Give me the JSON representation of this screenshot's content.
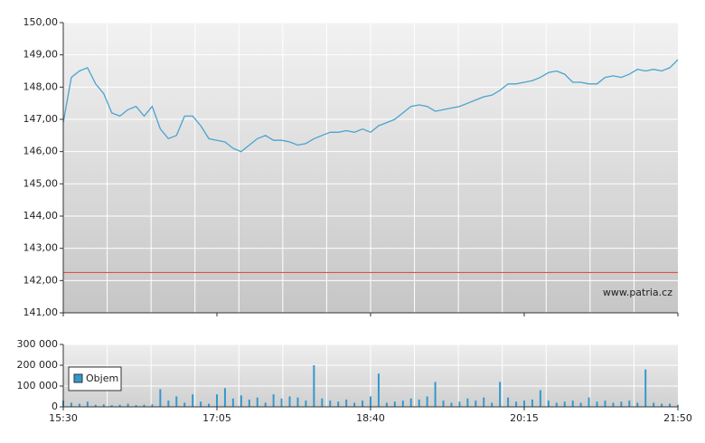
{
  "chart_data": [
    {
      "type": "line",
      "x": [
        "15:30",
        "15:35",
        "15:40",
        "15:45",
        "15:50",
        "15:55",
        "16:00",
        "16:05",
        "16:10",
        "16:15",
        "16:20",
        "16:25",
        "16:30",
        "16:35",
        "16:40",
        "16:45",
        "16:50",
        "16:55",
        "17:00",
        "17:05",
        "17:10",
        "17:15",
        "17:20",
        "17:25",
        "17:30",
        "17:35",
        "17:40",
        "17:45",
        "17:50",
        "17:55",
        "18:00",
        "18:05",
        "18:10",
        "18:15",
        "18:20",
        "18:25",
        "18:30",
        "18:35",
        "18:40",
        "18:45",
        "18:50",
        "18:55",
        "19:00",
        "19:05",
        "19:10",
        "19:15",
        "19:20",
        "19:25",
        "19:30",
        "19:35",
        "19:40",
        "19:45",
        "19:50",
        "19:55",
        "20:00",
        "20:05",
        "20:10",
        "20:15",
        "20:20",
        "20:25",
        "20:30",
        "20:35",
        "20:40",
        "20:45",
        "20:50",
        "20:55",
        "21:00",
        "21:05",
        "21:10",
        "21:15",
        "21:20",
        "21:25",
        "21:30",
        "21:35",
        "21:40",
        "21:45",
        "21:50"
      ],
      "series": [
        {
          "color": "#4aa3d0",
          "values": [
            146.9,
            148.3,
            148.5,
            148.6,
            148.1,
            147.8,
            147.2,
            147.1,
            147.3,
            147.4,
            147.1,
            147.4,
            146.7,
            146.4,
            146.5,
            147.1,
            147.1,
            146.8,
            146.4,
            146.35,
            146.3,
            146.1,
            146.0,
            146.2,
            146.4,
            146.5,
            146.35,
            146.35,
            146.3,
            146.2,
            146.25,
            146.4,
            146.5,
            146.6,
            146.6,
            146.65,
            146.6,
            146.7,
            146.6,
            146.8,
            146.9,
            147.0,
            147.2,
            147.4,
            147.45,
            147.4,
            147.25,
            147.3,
            147.35,
            147.4,
            147.5,
            147.6,
            147.7,
            147.75,
            147.9,
            148.1,
            148.1,
            148.15,
            148.2,
            148.3,
            148.45,
            148.5,
            148.4,
            148.15,
            148.15,
            148.1,
            148.1,
            148.3,
            148.35,
            148.3,
            148.4,
            148.55,
            148.5,
            148.55,
            148.5,
            148.6,
            148.85
          ]
        }
      ],
      "reference_line": {
        "value": 142.25,
        "color": "#d9534f"
      },
      "xlim": [
        "15:30",
        "21:50"
      ],
      "ylim": [
        141,
        150
      ],
      "yticks": [
        {
          "value": 141,
          "label": "141,00"
        },
        {
          "value": 142,
          "label": "142,00"
        },
        {
          "value": 143,
          "label": "143,00"
        },
        {
          "value": 144,
          "label": "144,00"
        },
        {
          "value": 145,
          "label": "145,00"
        },
        {
          "value": 146,
          "label": "146,00"
        },
        {
          "value": 147,
          "label": "147,00"
        },
        {
          "value": 148,
          "label": "148,00"
        },
        {
          "value": 149,
          "label": "149,00"
        },
        {
          "value": 150,
          "label": "150,00"
        }
      ],
      "annotation": "www.patria.cz",
      "grid": true
    },
    {
      "type": "bar",
      "x": [
        "15:30",
        "15:35",
        "15:40",
        "15:45",
        "15:50",
        "15:55",
        "16:00",
        "16:05",
        "16:10",
        "16:15",
        "16:20",
        "16:25",
        "16:30",
        "16:35",
        "16:40",
        "16:45",
        "16:50",
        "16:55",
        "17:00",
        "17:05",
        "17:10",
        "17:15",
        "17:20",
        "17:25",
        "17:30",
        "17:35",
        "17:40",
        "17:45",
        "17:50",
        "17:55",
        "18:00",
        "18:05",
        "18:10",
        "18:15",
        "18:20",
        "18:25",
        "18:30",
        "18:35",
        "18:40",
        "18:45",
        "18:50",
        "18:55",
        "19:00",
        "19:05",
        "19:10",
        "19:15",
        "19:20",
        "19:25",
        "19:30",
        "19:35",
        "19:40",
        "19:45",
        "19:50",
        "19:55",
        "20:00",
        "20:05",
        "20:10",
        "20:15",
        "20:20",
        "20:25",
        "20:30",
        "20:35",
        "20:40",
        "20:45",
        "20:50",
        "20:55",
        "21:00",
        "21:05",
        "21:10",
        "21:15",
        "21:20",
        "21:25",
        "21:30",
        "21:35",
        "21:40",
        "21:45",
        "21:50"
      ],
      "series": [
        {
          "name": "Objem",
          "color": "#3399cc",
          "values": [
            30000,
            20000,
            15000,
            25000,
            10000,
            12000,
            8000,
            10000,
            15000,
            8000,
            10000,
            12000,
            85000,
            30000,
            50000,
            20000,
            60000,
            25000,
            15000,
            60000,
            90000,
            40000,
            55000,
            35000,
            45000,
            20000,
            60000,
            40000,
            50000,
            45000,
            30000,
            200000,
            40000,
            30000,
            25000,
            35000,
            20000,
            30000,
            50000,
            160000,
            20000,
            25000,
            30000,
            40000,
            35000,
            50000,
            120000,
            30000,
            20000,
            25000,
            40000,
            30000,
            45000,
            20000,
            120000,
            45000,
            25000,
            30000,
            35000,
            80000,
            30000,
            20000,
            25000,
            30000,
            20000,
            45000,
            25000,
            30000,
            20000,
            25000,
            30000,
            20000,
            180000,
            20000,
            15000,
            15000,
            10000
          ]
        }
      ],
      "legend": "bottom-left",
      "xlim": [
        "15:30",
        "21:50"
      ],
      "xticks": [
        "15:30",
        "17:05",
        "18:40",
        "20:15",
        "21:50"
      ],
      "ylim": [
        0,
        300000
      ],
      "yticks": [
        0,
        {
          "value": 100000,
          "label": "100 000"
        },
        {
          "value": 200000,
          "label": "200 000"
        },
        {
          "value": 300000,
          "label": "300 000"
        }
      ],
      "grid": true
    }
  ]
}
